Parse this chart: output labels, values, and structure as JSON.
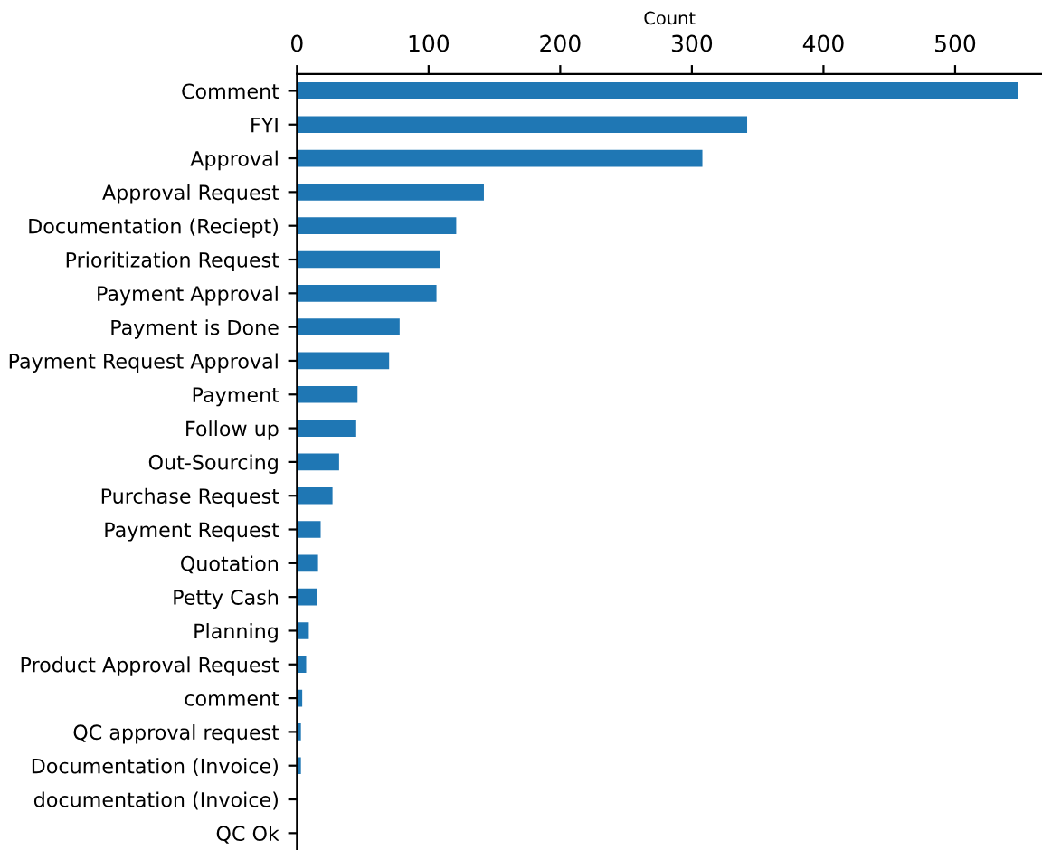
{
  "chart_data": {
    "type": "bar",
    "orientation": "horizontal",
    "xlabel": "Count",
    "color": "#1f77b4",
    "categories": [
      "Comment",
      "FYI",
      "Approval",
      "Approval Request",
      "Documentation (Reciept)",
      "Prioritization Request",
      "Payment Approval",
      "Payment is Done",
      "Payment Request Approval",
      "Payment",
      "Follow up",
      "Out-Sourcing",
      "Purchase Request",
      "Payment Request",
      "Quotation",
      "Petty Cash",
      "Planning",
      "Product Approval Request",
      "comment",
      "QC approval request",
      "Documentation (Invoice)",
      "documentation (Invoice)",
      "QC Ok"
    ],
    "values": [
      548,
      342,
      308,
      142,
      121,
      109,
      106,
      78,
      70,
      46,
      45,
      32,
      27,
      18,
      16,
      15,
      9,
      7,
      4,
      3,
      3,
      1,
      1
    ],
    "xlim": [
      0,
      566
    ],
    "xticks": [
      0,
      100,
      200,
      300,
      400,
      500
    ],
    "grid": false,
    "legend": false
  }
}
